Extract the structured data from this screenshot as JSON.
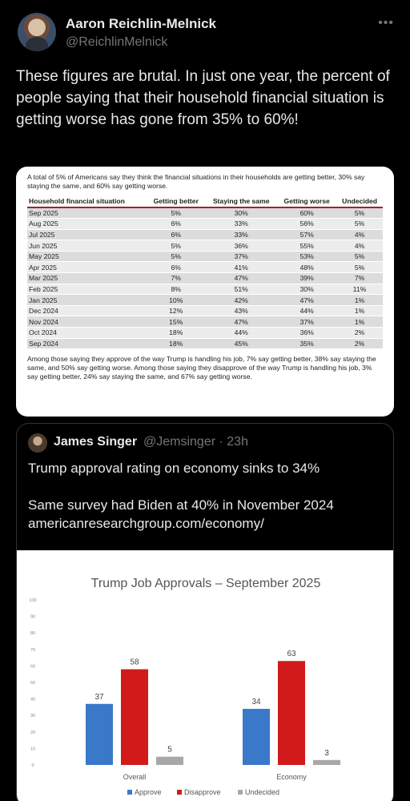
{
  "tweet": {
    "author_name": "Aaron Reichlin-Melnick",
    "author_handle": "@ReichlinMelnick",
    "more_icon": "more-icon",
    "text": "These figures are brutal. In just one year, the percent of people saying that their household financial situation is getting worse has gone from 35% to 60%!"
  },
  "table_image": {
    "intro": "A total of 5% of Americans say they think the financial situations in their households are getting better, 30% say staying the same, and 60% say getting worse.",
    "headers": [
      "Household financial situation",
      "Getting better",
      "Staying the same",
      "Getting worse",
      "Undecided"
    ],
    "rows": [
      [
        "Sep 2025",
        "5%",
        "30%",
        "60%",
        "5%"
      ],
      [
        "Aug 2025",
        "6%",
        "33%",
        "56%",
        "5%"
      ],
      [
        "Jul 2025",
        "6%",
        "33%",
        "57%",
        "4%"
      ],
      [
        "Jun 2025",
        "5%",
        "36%",
        "55%",
        "4%"
      ],
      [
        "May 2025",
        "5%",
        "37%",
        "53%",
        "5%"
      ],
      [
        "Apr 2025",
        "6%",
        "41%",
        "48%",
        "5%"
      ],
      [
        "Mar 2025",
        "7%",
        "47%",
        "39%",
        "7%"
      ],
      [
        "Feb 2025",
        "8%",
        "51%",
        "30%",
        "11%"
      ],
      [
        "Jan 2025",
        "10%",
        "42%",
        "47%",
        "1%"
      ],
      [
        "Dec 2024",
        "12%",
        "43%",
        "44%",
        "1%"
      ],
      [
        "Nov 2024",
        "15%",
        "47%",
        "37%",
        "1%"
      ],
      [
        "Oct 2024",
        "18%",
        "44%",
        "36%",
        "2%"
      ],
      [
        "Sep 2024",
        "18%",
        "45%",
        "35%",
        "2%"
      ]
    ],
    "outro": "Among those saying they approve of the way Trump is handling his job, 7% say getting better, 38% say staying the same, and 50% say getting worse. Among those saying they disapprove of the way Trump is handling his job, 3% say getting better, 24% say staying the same, and 67% say getting worse."
  },
  "quote": {
    "author_name": "James Singer",
    "author_handle": "@Jemsinger",
    "time": "· 23h",
    "line1": "Trump approval rating on economy sinks to 34%",
    "line2": "Same survey had Biden at 40% in November 2024",
    "line3": "americanresearchgroup.com/economy/"
  },
  "chart_data": {
    "type": "bar",
    "title": "Trump Job Approvals – September 2025",
    "categories": [
      "Overall",
      "Economy"
    ],
    "series": [
      {
        "name": "Approve",
        "values": [
          37,
          34
        ],
        "color": "#3a78c9"
      },
      {
        "name": "Disapprove",
        "values": [
          58,
          63
        ],
        "color": "#d11b1b"
      },
      {
        "name": "Undecided",
        "values": [
          5,
          3
        ],
        "color": "#a8a8a8"
      }
    ],
    "ylim": [
      0,
      100
    ],
    "yticks": [
      "0",
      "10",
      "20",
      "30",
      "40",
      "50",
      "60",
      "70",
      "80",
      "90",
      "100"
    ],
    "legend_position": "bottom"
  }
}
